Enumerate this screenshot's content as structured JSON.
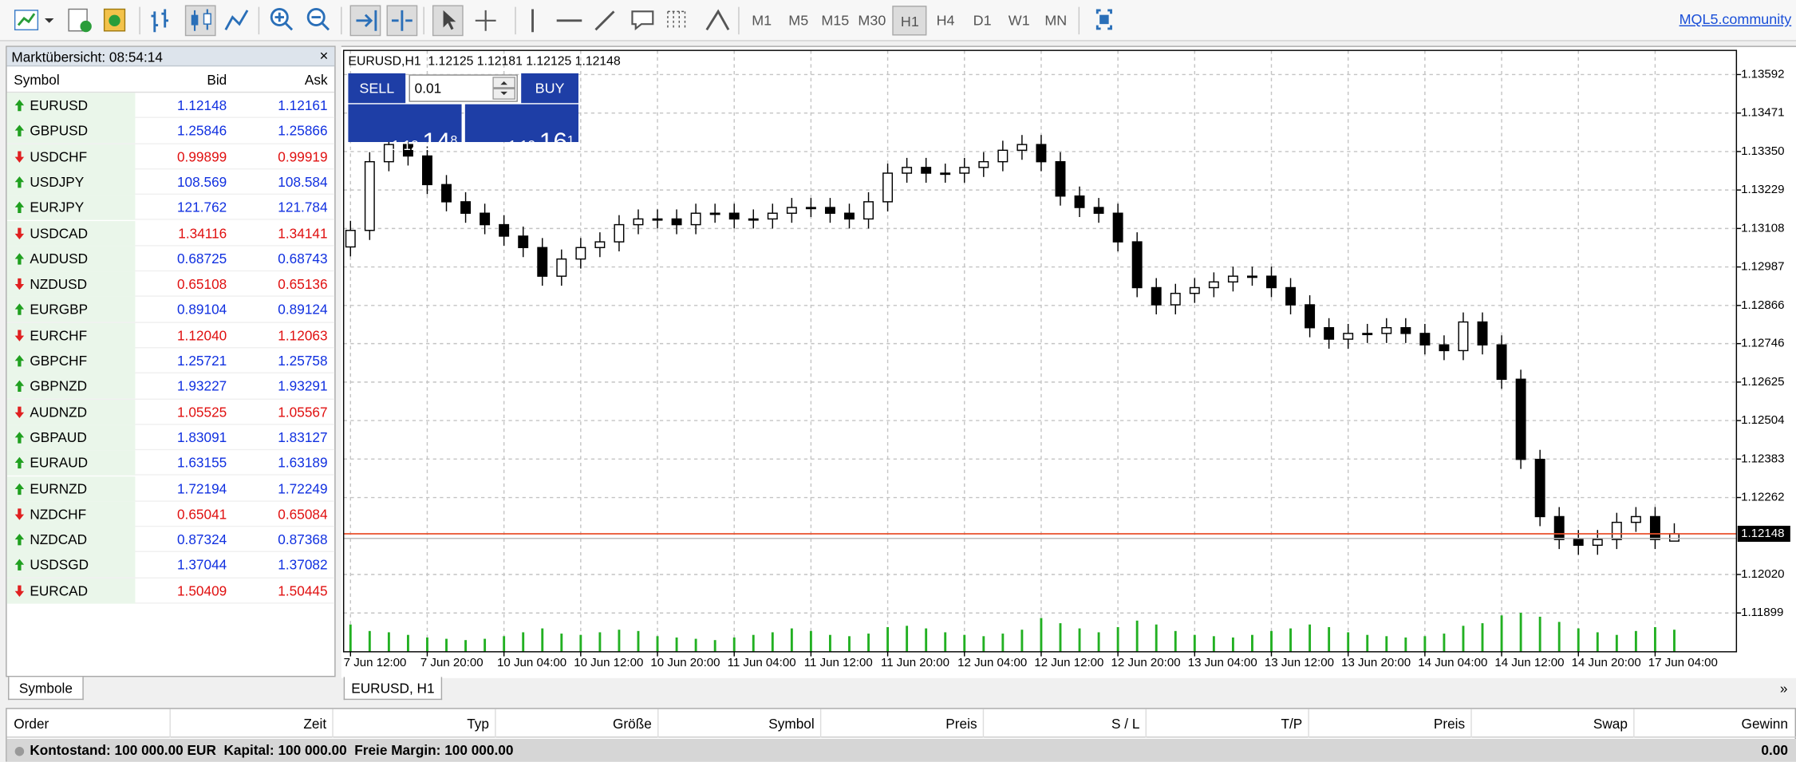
{
  "toolbar": {
    "timeframes": [
      "M1",
      "M5",
      "M15",
      "M30",
      "H1",
      "H4",
      "D1",
      "W1",
      "MN"
    ],
    "active_timeframe": "H1",
    "link": "MQL5.community"
  },
  "market_watch": {
    "title": "Marktübersicht: 08:54:14",
    "columns": [
      "Symbol",
      "Bid",
      "Ask"
    ],
    "tab": "Symbole",
    "rows": [
      {
        "symbol": "EURUSD",
        "bid": "1.12148",
        "ask": "1.12161",
        "direction": "up"
      },
      {
        "symbol": "GBPUSD",
        "bid": "1.25846",
        "ask": "1.25866",
        "direction": "up"
      },
      {
        "symbol": "USDCHF",
        "bid": "0.99899",
        "ask": "0.99919",
        "direction": "down"
      },
      {
        "symbol": "USDJPY",
        "bid": "108.569",
        "ask": "108.584",
        "direction": "up"
      },
      {
        "symbol": "EURJPY",
        "bid": "121.762",
        "ask": "121.784",
        "direction": "up"
      },
      {
        "symbol": "USDCAD",
        "bid": "1.34116",
        "ask": "1.34141",
        "direction": "down"
      },
      {
        "symbol": "AUDUSD",
        "bid": "0.68725",
        "ask": "0.68743",
        "direction": "up"
      },
      {
        "symbol": "NZDUSD",
        "bid": "0.65108",
        "ask": "0.65136",
        "direction": "down"
      },
      {
        "symbol": "EURGBP",
        "bid": "0.89104",
        "ask": "0.89124",
        "direction": "up"
      },
      {
        "symbol": "EURCHF",
        "bid": "1.12040",
        "ask": "1.12063",
        "direction": "down"
      },
      {
        "symbol": "GBPCHF",
        "bid": "1.25721",
        "ask": "1.25758",
        "direction": "up"
      },
      {
        "symbol": "GBPNZD",
        "bid": "1.93227",
        "ask": "1.93291",
        "direction": "up"
      },
      {
        "symbol": "AUDNZD",
        "bid": "1.05525",
        "ask": "1.05567",
        "direction": "down"
      },
      {
        "symbol": "GBPAUD",
        "bid": "1.83091",
        "ask": "1.83127",
        "direction": "up"
      },
      {
        "symbol": "EURAUD",
        "bid": "1.63155",
        "ask": "1.63189",
        "direction": "up"
      },
      {
        "symbol": "EURNZD",
        "bid": "1.72194",
        "ask": "1.72249",
        "direction": "up"
      },
      {
        "symbol": "NZDCHF",
        "bid": "0.65041",
        "ask": "0.65084",
        "direction": "down"
      },
      {
        "symbol": "NZDCAD",
        "bid": "0.87324",
        "ask": "0.87368",
        "direction": "up"
      },
      {
        "symbol": "USDSGD",
        "bid": "1.37044",
        "ask": "1.37082",
        "direction": "up"
      },
      {
        "symbol": "EURCAD",
        "bid": "1.50409",
        "ask": "1.50445",
        "direction": "down"
      }
    ]
  },
  "trade_panel": {
    "sell": "SELL",
    "buy": "BUY",
    "lot": "0.01",
    "bid": {
      "head": "1.12",
      "main": "14",
      "sup": "8"
    },
    "ask": {
      "head": "1.12",
      "main": "16",
      "sup": "1"
    }
  },
  "chart_data": {
    "type": "candlestick",
    "title": "EURUSD,H1  1.12125 1.12181 1.12125 1.12148",
    "tab": "EURUSD, H1",
    "categories": [
      "7 Jun 12:00",
      null,
      null,
      null,
      "7 Jun 20:00",
      null,
      null,
      null,
      "10 Jun 04:00",
      null,
      null,
      null,
      "10 Jun 12:00",
      null,
      null,
      null,
      "10 Jun 20:00",
      null,
      null,
      null,
      "11 Jun 04:00",
      null,
      null,
      null,
      "11 Jun 12:00",
      null,
      null,
      null,
      "11 Jun 20:00",
      null,
      null,
      null,
      "12 Jun 04:00",
      null,
      null,
      null,
      "12 Jun 12:00",
      null,
      null,
      null,
      "12 Jun 20:00",
      null,
      null,
      null,
      "13 Jun 04:00",
      null,
      null,
      null,
      "13 Jun 12:00",
      null,
      null,
      null,
      "13 Jun 20:00",
      null,
      null,
      null,
      "14 Jun 04:00",
      null,
      null,
      null,
      "14 Jun 12:00",
      null,
      null,
      null,
      "14 Jun 20:00",
      null,
      null,
      null,
      "17 Jun 04:00",
      null
    ],
    "ohlc": [
      [
        1.1305,
        1.13132,
        1.1302,
        1.13102
      ],
      [
        1.13102,
        1.13348,
        1.13072,
        1.13318
      ],
      [
        1.13318,
        1.13402,
        1.13288,
        1.13372
      ],
      [
        1.13372,
        1.13402,
        1.13306,
        1.13336
      ],
      [
        1.13336,
        1.13366,
        1.13216,
        1.13246
      ],
      [
        1.13246,
        1.13276,
        1.13162,
        1.13192
      ],
      [
        1.13192,
        1.13222,
        1.13126,
        1.13156
      ],
      [
        1.13156,
        1.13186,
        1.1309,
        1.1312
      ],
      [
        1.1312,
        1.1315,
        1.13054,
        1.13084
      ],
      [
        1.13084,
        1.13114,
        1.13018,
        1.13048
      ],
      [
        1.13048,
        1.13078,
        1.12928,
        1.12958
      ],
      [
        1.12958,
        1.13042,
        1.12928,
        1.13012
      ],
      [
        1.13012,
        1.13078,
        1.12982,
        1.13048
      ],
      [
        1.13048,
        1.13096,
        1.13018,
        1.13066
      ],
      [
        1.13066,
        1.1315,
        1.13036,
        1.1312
      ],
      [
        1.1312,
        1.13168,
        1.1309,
        1.13138
      ],
      [
        1.13138,
        1.13168,
        1.13108,
        1.13138
      ],
      [
        1.13138,
        1.13168,
        1.1309,
        1.1312
      ],
      [
        1.1312,
        1.13186,
        1.1309,
        1.13156
      ],
      [
        1.13156,
        1.13186,
        1.13126,
        1.13156
      ],
      [
        1.13156,
        1.13186,
        1.13108,
        1.13138
      ],
      [
        1.13138,
        1.13168,
        1.13108,
        1.13138
      ],
      [
        1.13138,
        1.13186,
        1.13108,
        1.13156
      ],
      [
        1.13156,
        1.13204,
        1.13126,
        1.13174
      ],
      [
        1.13174,
        1.13204,
        1.13144,
        1.13174
      ],
      [
        1.13174,
        1.13204,
        1.13126,
        1.13156
      ],
      [
        1.13156,
        1.13186,
        1.13108,
        1.13138
      ],
      [
        1.13138,
        1.13222,
        1.13108,
        1.13192
      ],
      [
        1.13192,
        1.13312,
        1.13162,
        1.13282
      ],
      [
        1.13282,
        1.1333,
        1.13252,
        1.133
      ],
      [
        1.133,
        1.1333,
        1.13252,
        1.13282
      ],
      [
        1.13282,
        1.13312,
        1.13252,
        1.13282
      ],
      [
        1.13282,
        1.1333,
        1.13252,
        1.133
      ],
      [
        1.133,
        1.13348,
        1.1327,
        1.13318
      ],
      [
        1.13318,
        1.13384,
        1.13288,
        1.13354
      ],
      [
        1.13354,
        1.13402,
        1.13324,
        1.13372
      ],
      [
        1.13372,
        1.13402,
        1.13288,
        1.13318
      ],
      [
        1.13318,
        1.13348,
        1.1318,
        1.1321
      ],
      [
        1.1321,
        1.1324,
        1.13144,
        1.13174
      ],
      [
        1.13174,
        1.13204,
        1.13126,
        1.13156
      ],
      [
        1.13156,
        1.13186,
        1.13036,
        1.13066
      ],
      [
        1.13066,
        1.13096,
        1.12892,
        1.12922
      ],
      [
        1.12922,
        1.12952,
        1.12838,
        1.12868
      ],
      [
        1.12868,
        1.12934,
        1.12838,
        1.12904
      ],
      [
        1.12904,
        1.12952,
        1.12874,
        1.12922
      ],
      [
        1.12922,
        1.1297,
        1.12892,
        1.1294
      ],
      [
        1.1294,
        1.12988,
        1.1291,
        1.12958
      ],
      [
        1.12958,
        1.12988,
        1.12928,
        1.12958
      ],
      [
        1.12958,
        1.12988,
        1.12892,
        1.12922
      ],
      [
        1.12922,
        1.12952,
        1.12838,
        1.12868
      ],
      [
        1.12868,
        1.12898,
        1.12766,
        1.12796
      ],
      [
        1.12796,
        1.12826,
        1.1273,
        1.1276
      ],
      [
        1.1276,
        1.12808,
        1.1273,
        1.12778
      ],
      [
        1.12778,
        1.12808,
        1.12748,
        1.12778
      ],
      [
        1.12778,
        1.12826,
        1.12748,
        1.12796
      ],
      [
        1.12796,
        1.12826,
        1.12748,
        1.12778
      ],
      [
        1.12778,
        1.12808,
        1.12712,
        1.12742
      ],
      [
        1.12742,
        1.12772,
        1.12694,
        1.12724
      ],
      [
        1.12724,
        1.12844,
        1.12694,
        1.12814
      ],
      [
        1.12814,
        1.12844,
        1.12712,
        1.12742
      ],
      [
        1.12742,
        1.12772,
        1.12604,
        1.12634
      ],
      [
        1.12634,
        1.12664,
        1.12352,
        1.12382
      ],
      [
        1.12382,
        1.12412,
        1.12172,
        1.12202
      ],
      [
        1.12202,
        1.12232,
        1.121,
        1.1213
      ],
      [
        1.1213,
        1.1216,
        1.12082,
        1.12112
      ],
      [
        1.12112,
        1.1216,
        1.12082,
        1.1213
      ],
      [
        1.1213,
        1.12214,
        1.121,
        1.12184
      ],
      [
        1.12184,
        1.12232,
        1.12154,
        1.12202
      ],
      [
        1.12202,
        1.12232,
        1.121,
        1.1213
      ],
      [
        1.12125,
        1.12181,
        1.12125,
        1.12148
      ]
    ],
    "volumes": [
      2100,
      1600,
      1500,
      1300,
      1100,
      1000,
      900,
      1000,
      1200,
      1500,
      1800,
      1400,
      1300,
      1500,
      1700,
      1600,
      1200,
      1100,
      1000,
      900,
      1100,
      1300,
      1500,
      1800,
      1600,
      1300,
      1200,
      1400,
      1900,
      2000,
      1800,
      1500,
      1300,
      1200,
      1400,
      1700,
      2600,
      2200,
      1800,
      1500,
      1900,
      2400,
      2100,
      1600,
      1300,
      1200,
      1100,
      1300,
      1600,
      1800,
      2100,
      1900,
      1500,
      1300,
      1200,
      1100,
      1200,
      1400,
      2000,
      2200,
      2800,
      3000,
      2700,
      2300,
      1800,
      1500,
      1300,
      1600,
      1900,
      1700
    ],
    "ylim": [
      1.11777,
      1.13668
    ],
    "yticks": [
      1.13592,
      1.13471,
      {
        "value": 1.1335,
        "label": "1.13350"
      },
      1.13229,
      1.13108,
      1.12987,
      1.12866,
      1.12746,
      1.12625,
      1.12504,
      1.12383,
      1.12262,
      {
        "value": 1.1202,
        "label": "1.12020"
      },
      1.11899
    ],
    "current_price": 1.12148,
    "grid": true,
    "bull_color": "#ffffff",
    "bear_color": "#000000",
    "volume_color": "#22b022",
    "price_line_color": "#e8502c"
  },
  "trade_table": {
    "columns": [
      "Order",
      "Zeit",
      "Typ",
      "Größe",
      "Symbol",
      "Preis",
      "S / L",
      "T/P",
      "Preis",
      "Swap",
      "Gewinn"
    ],
    "balance": "Kontostand: 100 000.00 EUR  Kapital: 100 000.00  Freie Margin: 100 000.00",
    "profit": "0.00"
  }
}
